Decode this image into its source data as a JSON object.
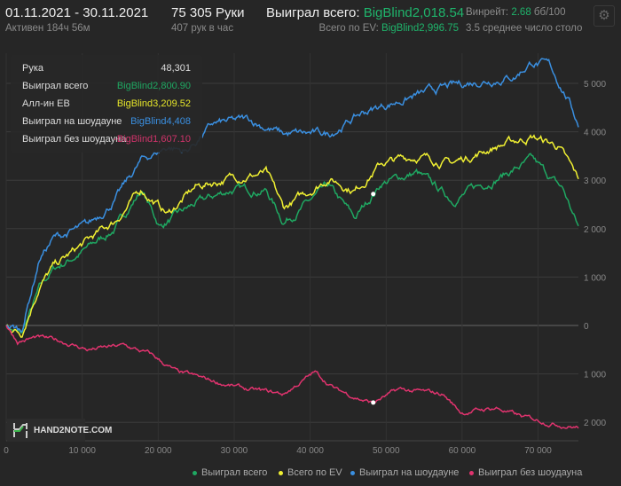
{
  "header": {
    "date_range": "01.11.2021 - 30.11.2021",
    "active": "Активен 184ч 56м",
    "hands": "75 305 Руки",
    "hands_per_hour": "407 рук в час",
    "won_label": "Выиграл всего:",
    "won_value": "BigBlind2,018.54",
    "ev_label": "Всего по EV:",
    "ev_value": "BigBlind2,996.75",
    "winrate_label": "Винрейт:",
    "winrate_value": "2.68",
    "winrate_unit": "бб/100",
    "tables": "3.5 среднее число столо"
  },
  "tooltip": {
    "rows": [
      {
        "label": "Рука",
        "value": "48,301",
        "color": "#dddddd"
      },
      {
        "label": "Выиграл всего",
        "value": "BigBlind2,800.90",
        "color": "#1fa862"
      },
      {
        "label": "Алл-ин EB",
        "value": "BigBlind3,209.52",
        "color": "#e6e62a"
      },
      {
        "label": "Выиграл на шоудауне",
        "value": "BigBlind4,408",
        "color": "#3a8fe0"
      },
      {
        "label": "Выиграл без шоудауна",
        "value": "-BigBlind1,607.10",
        "color": "#d0336a"
      }
    ]
  },
  "logo": {
    "text": "HAND2NOTE.COM"
  },
  "chart_data": {
    "type": "line",
    "xlabel": "",
    "ylabel": "",
    "xlim": [
      0,
      75305
    ],
    "ylim": [
      -2300,
      5600
    ],
    "x_ticks": [
      0,
      10000,
      20000,
      30000,
      40000,
      50000,
      60000,
      70000
    ],
    "x_tick_labels": [
      "0",
      "10 000",
      "20 000",
      "30 000",
      "40 000",
      "50 000",
      "60 000",
      "70 000"
    ],
    "y_ticks": [
      5000,
      4000,
      3000,
      2000,
      1000,
      0,
      -1000,
      -2000
    ],
    "y_tick_labels": [
      "5 000",
      "4 000",
      "3 000",
      "2 000",
      "1 000",
      "0",
      "1 000",
      "2 000"
    ],
    "grid": true,
    "legend_position": "bottom-right",
    "hover_hand": 48301,
    "series": [
      {
        "name": "Выиграл всего",
        "color": "#1fa862",
        "x": [
          0,
          2000,
          4400,
          6200,
          10800,
          14300,
          17800,
          20200,
          24900,
          29500,
          34200,
          36500,
          42400,
          45900,
          49400,
          54000,
          58700,
          64500,
          69200,
          73300,
          75305
        ],
        "values": [
          0,
          -200,
          750,
          1150,
          1600,
          2000,
          2800,
          2050,
          2500,
          2800,
          2800,
          2150,
          2850,
          2200,
          2950,
          3150,
          2600,
          3050,
          3400,
          2800,
          2018
        ]
      },
      {
        "name": "Всего по EV",
        "color": "#f0f032",
        "x": [
          0,
          2000,
          4400,
          6200,
          10800,
          14300,
          17800,
          21300,
          24900,
          29500,
          34200,
          36500,
          42400,
          45900,
          49400,
          54000,
          58700,
          64500,
          69200,
          72700,
          75305
        ],
        "values": [
          0,
          -150,
          850,
          1200,
          1750,
          2150,
          2800,
          2300,
          2850,
          3050,
          3150,
          2400,
          3050,
          2800,
          3350,
          3500,
          3350,
          3700,
          3900,
          3700,
          2996
        ]
      },
      {
        "name": "Выиграл на шоудауне",
        "color": "#3a8fe0",
        "x": [
          0,
          2000,
          4400,
          6200,
          10800,
          14300,
          17800,
          21300,
          23700,
          27200,
          31900,
          36500,
          42400,
          47000,
          52900,
          57500,
          62200,
          66900,
          69200,
          71500,
          73900,
          75305
        ],
        "values": [
          0,
          -100,
          1400,
          1800,
          2050,
          2600,
          3400,
          3700,
          3600,
          4150,
          4250,
          3950,
          3950,
          4400,
          4700,
          4900,
          5050,
          5150,
          5450,
          5350,
          4700,
          4150
        ]
      },
      {
        "name": "Выиграл без шоудауна",
        "color": "#e0336e",
        "x": [
          0,
          1500,
          3900,
          7400,
          10800,
          15500,
          19000,
          22500,
          27200,
          31900,
          36500,
          40600,
          43500,
          48200,
          51700,
          57500,
          59900,
          64500,
          68000,
          71500,
          75305
        ],
        "values": [
          0,
          -330,
          -250,
          -330,
          -500,
          -420,
          -600,
          -970,
          -1150,
          -1330,
          -1420,
          -970,
          -1330,
          -1600,
          -1330,
          -1420,
          -1800,
          -1700,
          -1900,
          -2000,
          -2100
        ]
      }
    ]
  }
}
